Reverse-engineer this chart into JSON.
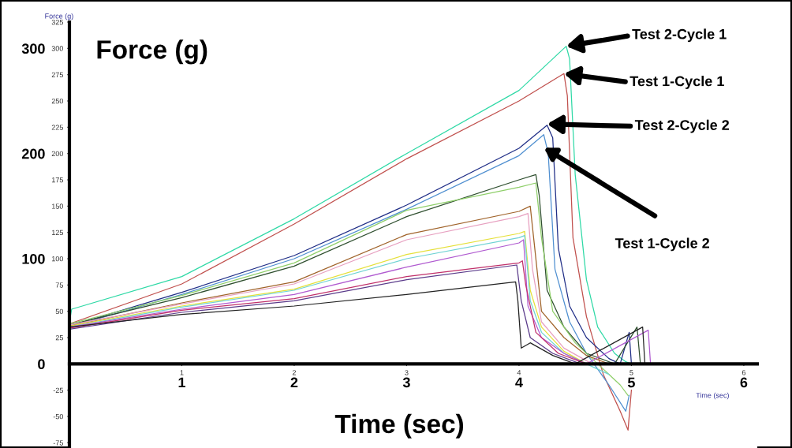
{
  "chart_data": {
    "type": "line",
    "xlabel": "Time (sec)",
    "ylabel": "Force (g)",
    "x2label": "Time (sec)",
    "xlim": [
      0,
      6.12
    ],
    "ylim": [
      -80,
      325
    ],
    "xticks": [
      1,
      2,
      3,
      4,
      5,
      6
    ],
    "yticks": [
      -75,
      -50,
      -25,
      25,
      50,
      75,
      100,
      125,
      150,
      175,
      200,
      225,
      250,
      275,
      300,
      325
    ],
    "x2lim": [
      0,
      6.12
    ],
    "x2ticks": [
      1,
      2,
      3,
      4,
      5,
      6
    ],
    "y2lim": [
      -80,
      325
    ],
    "y2ticks": [
      0,
      100,
      200,
      300
    ],
    "grid": false,
    "series": [
      {
        "color": "#2fd9a6",
        "x": [
          0,
          0.02,
          1,
          2,
          3,
          4,
          4.42,
          4.45,
          4.5,
          4.6,
          4.7,
          4.85,
          4.95,
          5.0
        ],
        "values": [
          40,
          52,
          83,
          138,
          200,
          260,
          302,
          290,
          180,
          80,
          35,
          10,
          2,
          0
        ]
      },
      {
        "color": "#c0504d",
        "x": [
          0,
          1,
          2,
          3,
          4,
          4.4,
          4.43,
          4.48,
          4.6,
          4.75,
          4.9,
          4.97,
          5.0
        ],
        "values": [
          38,
          76,
          133,
          195,
          250,
          276,
          255,
          120,
          45,
          -10,
          -45,
          -63,
          -25
        ]
      },
      {
        "color": "#1f2d86",
        "x": [
          0,
          1,
          2,
          3,
          4,
          4.25,
          4.3,
          4.35,
          4.45,
          4.6,
          4.8,
          4.9,
          4.98,
          5.0
        ],
        "values": [
          36,
          68,
          103,
          151,
          205,
          227,
          215,
          110,
          55,
          25,
          5,
          0,
          30,
          0
        ]
      },
      {
        "color": "#4f8fd0",
        "x": [
          0,
          1,
          2,
          3,
          4,
          4.22,
          4.26,
          4.32,
          4.45,
          4.6,
          4.8,
          4.95,
          4.98
        ],
        "values": [
          35,
          66,
          100,
          147,
          198,
          218,
          200,
          90,
          40,
          10,
          -20,
          -45,
          -30
        ]
      },
      {
        "color": "#2f4f2f",
        "x": [
          0,
          1,
          2,
          3,
          4,
          4.15,
          4.18,
          4.25,
          4.4,
          4.6,
          4.85,
          5.05,
          5.08
        ],
        "values": [
          37,
          63,
          93,
          140,
          175,
          180,
          160,
          70,
          35,
          10,
          0,
          35,
          0
        ]
      },
      {
        "color": "#8fcf6a",
        "x": [
          0,
          1,
          2,
          3,
          4,
          4.15,
          4.2,
          4.3,
          4.5,
          4.7,
          4.9,
          4.97
        ],
        "values": [
          38,
          65,
          96,
          146,
          168,
          172,
          120,
          50,
          20,
          0,
          -20,
          -30
        ]
      },
      {
        "color": "#a0632a",
        "x": [
          0,
          1,
          2,
          3,
          4,
          4.1,
          4.13,
          4.2,
          4.4,
          4.6,
          4.8
        ],
        "values": [
          36,
          58,
          78,
          123,
          145,
          150,
          120,
          50,
          25,
          8,
          0
        ]
      },
      {
        "color": "#e7a0c0",
        "x": [
          0,
          1,
          2,
          3,
          4,
          4.08,
          4.12,
          4.2,
          4.4,
          4.65
        ],
        "values": [
          37,
          57,
          76,
          118,
          140,
          143,
          90,
          40,
          15,
          0
        ]
      },
      {
        "color": "#e5e03a",
        "x": [
          0,
          1,
          2,
          3,
          4,
          4.05,
          4.1,
          4.2,
          4.4,
          4.6
        ],
        "values": [
          36,
          55,
          71,
          104,
          124,
          126,
          70,
          35,
          12,
          0
        ]
      },
      {
        "color": "#6fd3d3",
        "x": [
          0,
          1,
          2,
          3,
          4,
          4.05,
          4.1,
          4.2,
          4.4,
          4.6,
          4.8
        ],
        "values": [
          35,
          54,
          70,
          100,
          120,
          122,
          60,
          30,
          10,
          0,
          -10
        ]
      },
      {
        "color": "#b05ad0",
        "x": [
          0,
          1,
          2,
          3,
          4,
          4.04,
          4.08,
          4.2,
          4.4,
          4.6,
          5.15,
          5.17
        ],
        "values": [
          35,
          52,
          66,
          92,
          115,
          118,
          55,
          25,
          10,
          0,
          32,
          0
        ]
      },
      {
        "color": "#c0306a",
        "x": [
          0,
          1,
          2,
          3,
          4,
          4.03,
          4.06,
          4.15,
          4.35,
          4.6
        ],
        "values": [
          34,
          51,
          62,
          83,
          96,
          98,
          75,
          30,
          10,
          0
        ]
      },
      {
        "color": "#5a3a8a",
        "x": [
          0,
          1,
          2,
          3,
          3.98,
          4.02,
          4.1,
          4.3,
          4.55
        ],
        "values": [
          33,
          49,
          60,
          80,
          94,
          60,
          25,
          10,
          0
        ]
      },
      {
        "color": "#222222",
        "x": [
          0,
          1,
          2,
          3,
          3.97,
          3.99,
          4.02,
          4.1,
          4.3,
          4.5,
          5.1,
          5.12
        ],
        "values": [
          35,
          47,
          55,
          66,
          78,
          60,
          15,
          20,
          8,
          0,
          35,
          0
        ]
      }
    ],
    "annotations": [
      "Force (g)",
      {
        "text": "Test 2-Cycle 1",
        "x": 4.42,
        "y": 302
      },
      {
        "text": "Test 1-Cycle 1",
        "x": 4.4,
        "y": 276
      },
      {
        "text": "Test 2-Cycle 2",
        "x": 4.25,
        "y": 228
      },
      "Test 1-Cycle 2"
    ]
  }
}
